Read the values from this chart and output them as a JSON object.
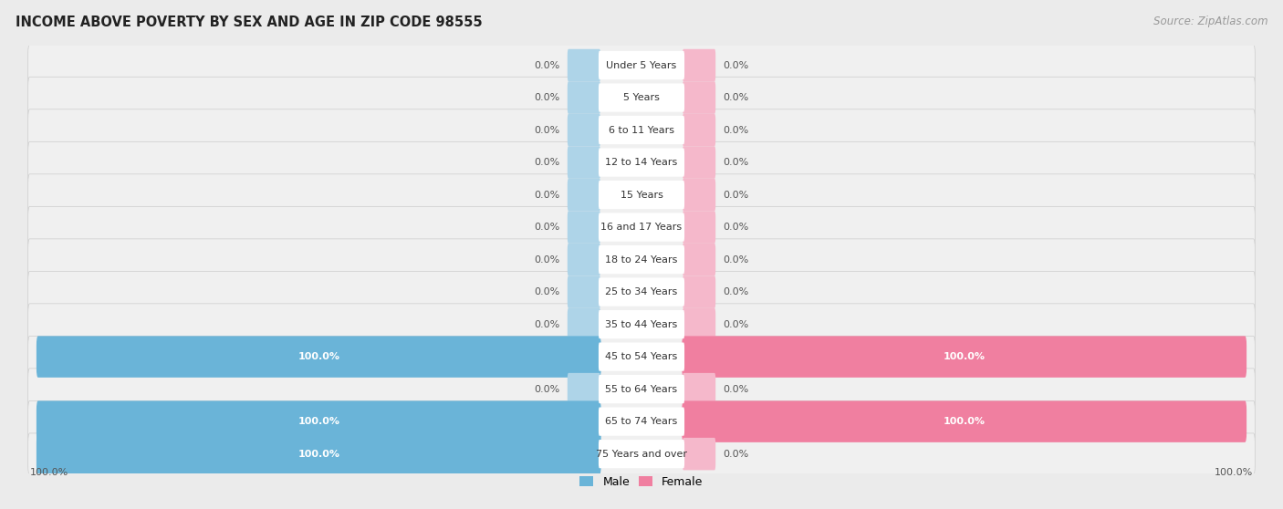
{
  "title": "INCOME ABOVE POVERTY BY SEX AND AGE IN ZIP CODE 98555",
  "source": "Source: ZipAtlas.com",
  "categories": [
    "Under 5 Years",
    "5 Years",
    "6 to 11 Years",
    "12 to 14 Years",
    "15 Years",
    "16 and 17 Years",
    "18 to 24 Years",
    "25 to 34 Years",
    "35 to 44 Years",
    "45 to 54 Years",
    "55 to 64 Years",
    "65 to 74 Years",
    "75 Years and over"
  ],
  "male_values": [
    0.0,
    0.0,
    0.0,
    0.0,
    0.0,
    0.0,
    0.0,
    0.0,
    0.0,
    100.0,
    0.0,
    100.0,
    100.0
  ],
  "female_values": [
    0.0,
    0.0,
    0.0,
    0.0,
    0.0,
    0.0,
    0.0,
    0.0,
    0.0,
    100.0,
    0.0,
    100.0,
    0.0
  ],
  "male_color_zero": "#aed4e8",
  "female_color_zero": "#f5b8cb",
  "male_color_full": "#6ab4d8",
  "female_color_full": "#f07fa0",
  "row_bg_color": "#e8e8e8",
  "bar_bg_color": "#f5f5f5",
  "bg_color": "#ebebeb",
  "title_fontsize": 10.5,
  "source_fontsize": 8.5,
  "label_fontsize": 8,
  "category_fontsize": 8
}
